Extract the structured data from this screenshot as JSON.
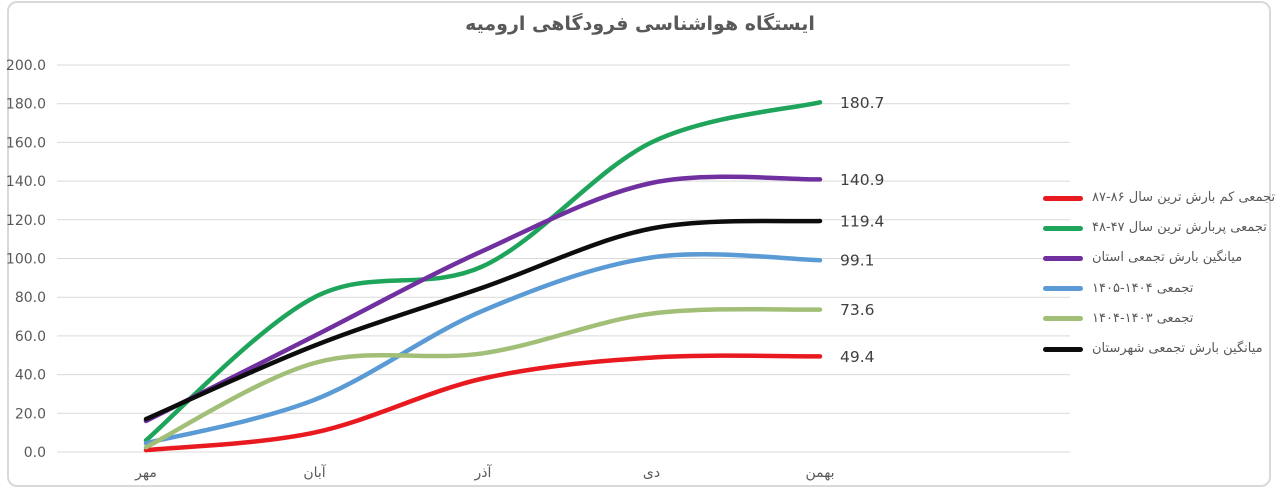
{
  "chart_data": {
    "type": "line",
    "title": "ایستگاه هواشناسی فرودگاهی ارومیه",
    "categories": [
      "مهر",
      "آبان",
      "آذر",
      "دی",
      "بهمن"
    ],
    "series": [
      {
        "name": "تجمعی کم بارش ترین سال ۸۶-۸۷",
        "color": "#e81a20",
        "values": [
          1,
          10,
          38,
          48.8,
          49.4
        ],
        "end_label": "49.4"
      },
      {
        "name": "تجمعی پربارش ترین سال ۴۷-۴۸",
        "color": "#1fa45c",
        "values": [
          6,
          80,
          96,
          160,
          180.7
        ],
        "end_label": "180.7"
      },
      {
        "name": "میانگین بارش تجمعی استان",
        "color": "#7030a0",
        "values": [
          16,
          60,
          104,
          139,
          140.9
        ],
        "end_label": "140.9"
      },
      {
        "name": "تجمعی ۱۴۰۴-۱۴۰۵",
        "color": "#5b9bd5",
        "values": [
          4.5,
          27,
          73,
          100.5,
          99.1
        ],
        "end_label": "99.1"
      },
      {
        "name": "تجمعی ۱۴۰۳-۱۴۰۴",
        "color": "#a2bf77",
        "values": [
          2.5,
          46,
          51,
          71.5,
          73.6
        ],
        "end_label": "73.6"
      },
      {
        "name": "میانگین بارش تجمعی شهرستان",
        "color": "#0d0d0d",
        "values": [
          17,
          55,
          85,
          115.5,
          119.4
        ],
        "end_label": "119.4"
      }
    ],
    "y_ticks": [
      0,
      20,
      40,
      60,
      80,
      100,
      120,
      140,
      160,
      180,
      200
    ],
    "y_tick_labels": [
      "0.0",
      "20.0",
      "40.0",
      "60.0",
      "80.0",
      "100.0",
      "120.0",
      "140.0",
      "160.0",
      "180.0",
      "200.0"
    ],
    "ylim": [
      0,
      200
    ],
    "grid": true,
    "legend_position": "right",
    "smooth_lines": true
  },
  "colors": {
    "grid": "#d9d9d9",
    "axis_text": "#595959",
    "title_text": "#595959",
    "data_label_text": "#404040",
    "frame_border": "#d9d9d9",
    "background": "#ffffff"
  }
}
